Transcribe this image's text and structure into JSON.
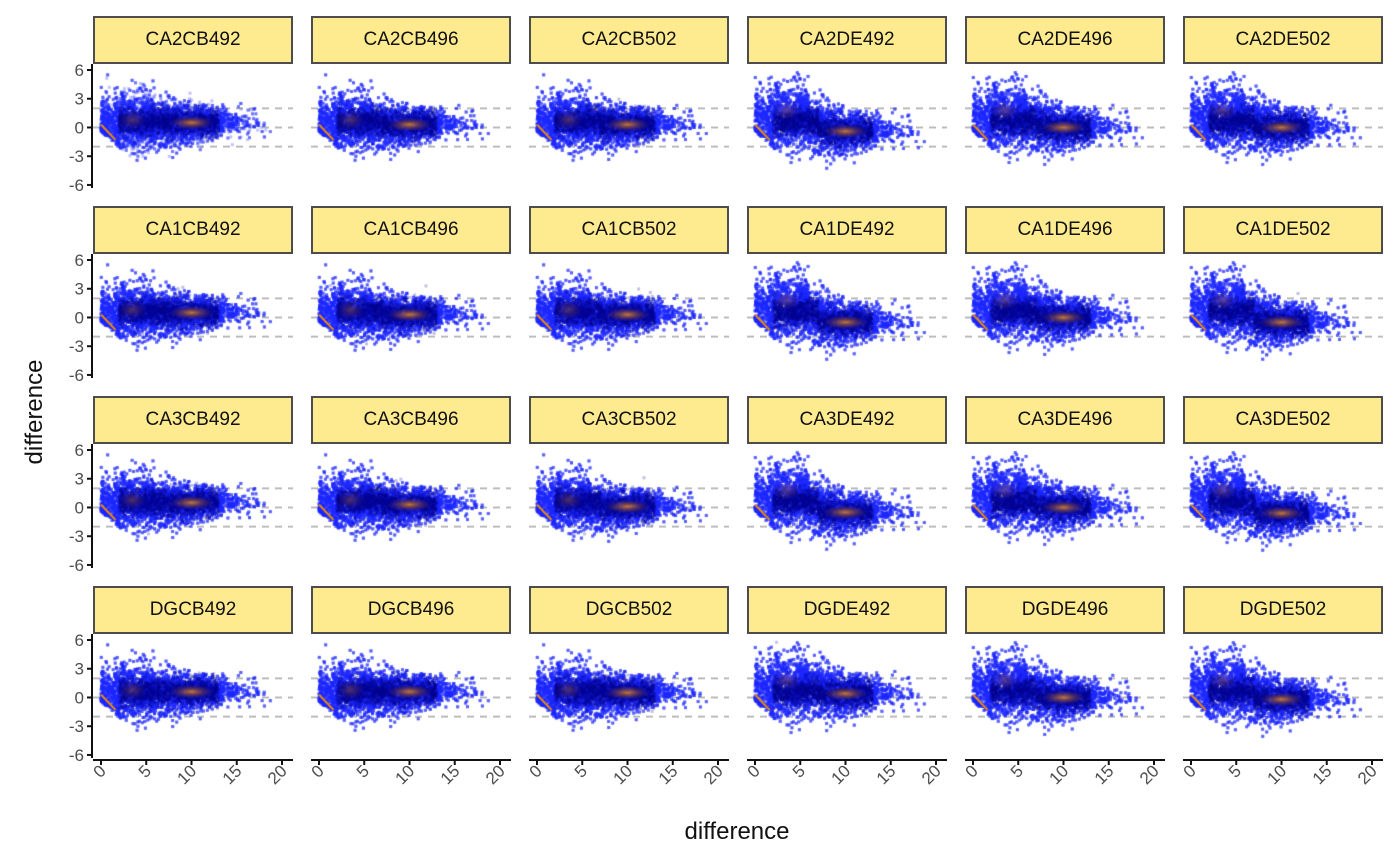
{
  "chart_data": {
    "type": "scatter",
    "layout": "facet grid 4 rows x 6 columns",
    "xlabel": "difference",
    "ylabel": "difference",
    "xlim": [
      0,
      20
    ],
    "ylim": [
      -6,
      6
    ],
    "x_ticks": [
      "0",
      "5",
      "10",
      "15",
      "20"
    ],
    "y_ticks": [
      "6",
      "3",
      "0",
      "-3",
      "-6"
    ],
    "reference_lines_y": [
      2,
      0,
      -2
    ],
    "reference_line_style": "dashed grey",
    "point_color": "#0000ff",
    "density_highlight_color": "#e08a1e",
    "strip_color": "#ffeb8f",
    "facets": [
      [
        "CA2CB492",
        "CA2CB496",
        "CA2CB502",
        "CA2DE492",
        "CA2DE496",
        "CA2DE502"
      ],
      [
        "CA1CB492",
        "CA1CB496",
        "CA1CB502",
        "CA1DE492",
        "CA1DE496",
        "CA1DE502"
      ],
      [
        "CA3CB492",
        "CA3CB496",
        "CA3CB502",
        "CA3DE492",
        "CA3DE496",
        "CA3DE502"
      ],
      [
        "DGCB492",
        "DGCB496",
        "DGCB502",
        "DGDE492",
        "DGDE496",
        "DGDE502"
      ]
    ],
    "dense_core_y": [
      [
        0.5,
        0.3,
        0.3,
        -0.4,
        0.0,
        0.0
      ],
      [
        0.5,
        0.3,
        0.3,
        -0.5,
        0.0,
        -0.5
      ],
      [
        0.5,
        0.3,
        0.1,
        -0.5,
        0.0,
        -0.6
      ],
      [
        0.6,
        0.6,
        0.5,
        0.4,
        0.0,
        -0.2
      ]
    ]
  }
}
